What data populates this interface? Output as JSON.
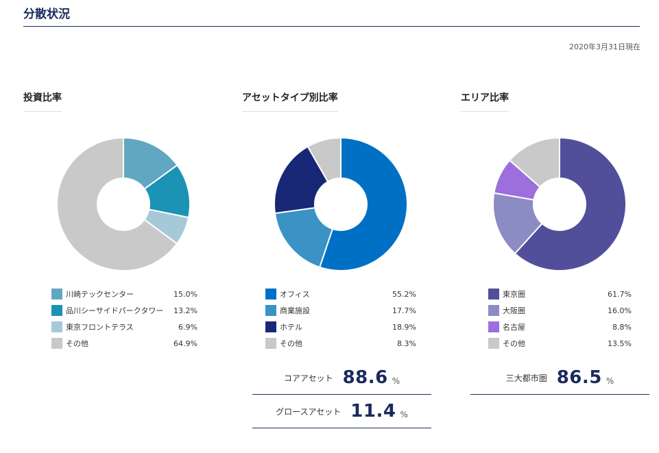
{
  "page": {
    "title": "分散状況",
    "as_of": "2020年3月31日現在"
  },
  "chart_data": [
    {
      "type": "pie",
      "title": "投資比率",
      "categories": [
        "川崎テックセンター",
        "品川シーサイドパークタワー",
        "東京フロントテラス",
        "その他"
      ],
      "values": [
        15.0,
        13.2,
        6.9,
        64.9
      ],
      "value_labels": [
        "15.0%",
        "13.2%",
        "6.9%",
        "64.9%"
      ],
      "colors": [
        "#62a7c1",
        "#1a93b5",
        "#a6c9d8",
        "#c9c9c9"
      ],
      "donut": true,
      "legend_position": "bottom"
    },
    {
      "type": "pie",
      "title": "アセットタイプ別比率",
      "categories": [
        "オフィス",
        "商業施設",
        "ホテル",
        "その他"
      ],
      "values": [
        55.2,
        17.7,
        18.9,
        8.3
      ],
      "value_labels": [
        "55.2%",
        "17.7%",
        "18.9%",
        "8.3%"
      ],
      "colors": [
        "#0070c4",
        "#3a93c4",
        "#182877",
        "#c9c9c9"
      ],
      "donut": true,
      "legend_position": "bottom"
    },
    {
      "type": "pie",
      "title": "エリア比率",
      "categories": [
        "東京圏",
        "大阪圏",
        "名古屋",
        "その他"
      ],
      "values": [
        61.7,
        16.0,
        8.8,
        13.5
      ],
      "value_labels": [
        "61.7%",
        "16.0%",
        "8.8%",
        "13.5%"
      ],
      "colors": [
        "#514f9a",
        "#8b8cc4",
        "#9c6fdd",
        "#c9c9c9"
      ],
      "donut": true,
      "legend_position": "bottom"
    }
  ],
  "summaries": {
    "core": {
      "label": "コアアセット",
      "value": "88.6",
      "unit": "%"
    },
    "growth": {
      "label": "グロースアセット",
      "value": "11.4",
      "unit": "%"
    },
    "metro": {
      "label": "三大都市圏",
      "value": "86.5",
      "unit": "%"
    }
  }
}
